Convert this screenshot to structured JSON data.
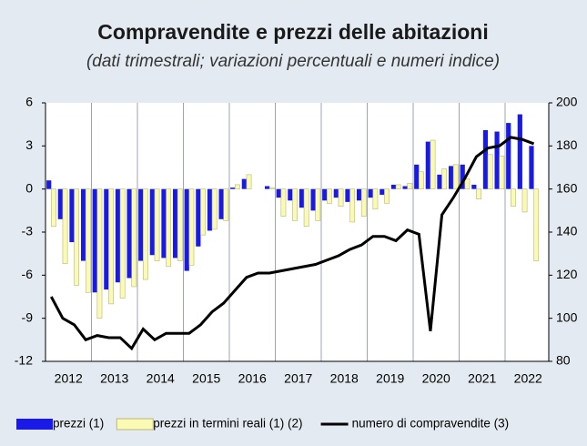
{
  "chart_data": {
    "type": "bar-line",
    "title": "Compravendite e prezzi delle abitazioni",
    "subtitle": "(dati trimestrali; variazioni percentuali e numeri indice)",
    "years": [
      "2012",
      "2013",
      "2014",
      "2015",
      "2016",
      "2017",
      "2018",
      "2019",
      "2020",
      "2021",
      "2022"
    ],
    "ylim": [
      -12,
      6
    ],
    "yticks": [
      -12,
      -9,
      -6,
      -3,
      0,
      3,
      6
    ],
    "y2lim": [
      80,
      200
    ],
    "y2ticks": [
      80,
      100,
      120,
      140,
      160,
      180,
      200
    ],
    "series": [
      {
        "name": "prezzi (1)",
        "kind": "bar",
        "color": "#1a1ae6",
        "values": [
          0.6,
          -2.1,
          -3.7,
          -5.0,
          -7.2,
          -7.0,
          -6.5,
          -6.2,
          -5.0,
          -4.6,
          -4.8,
          -4.8,
          -5.7,
          -4.0,
          -2.9,
          -2.1,
          0.1,
          0.7,
          0.0,
          0.2,
          -0.6,
          -0.8,
          -1.3,
          -1.5,
          -0.8,
          -0.6,
          -0.9,
          -0.8,
          -0.6,
          -0.4,
          0.3,
          0.2,
          1.7,
          3.3,
          1.0,
          1.6,
          1.7,
          0.3,
          4.1,
          4.0,
          4.6,
          5.2,
          3.0
        ]
      },
      {
        "name": "prezzi in termini reali (1) (2)",
        "kind": "bar",
        "color": "#fafab4",
        "values": [
          -2.6,
          -5.2,
          -6.7,
          -7.2,
          -9.0,
          -8.0,
          -7.6,
          -6.8,
          -6.3,
          -5.0,
          -5.4,
          -5.0,
          -5.3,
          -3.2,
          -2.8,
          -2.2,
          0.3,
          1.0,
          0.0,
          0.1,
          -1.9,
          -2.2,
          -2.6,
          -2.2,
          -1.0,
          -1.2,
          -2.3,
          -1.9,
          -1.4,
          -1.0,
          0.3,
          0.4,
          1.2,
          3.4,
          1.4,
          1.7,
          0.7,
          -0.7,
          2.4,
          2.3,
          -1.2,
          -1.6,
          -5.0
        ]
      },
      {
        "name": "numero di compravendite (3)",
        "kind": "line",
        "axis": "y2",
        "color": "#000000",
        "values": [
          110,
          100,
          97,
          90,
          92,
          91,
          91,
          86,
          95,
          90,
          93,
          93,
          93,
          97,
          103,
          107,
          113,
          119,
          121,
          121,
          122,
          123,
          124,
          125,
          127,
          129,
          132,
          134,
          138,
          138,
          136,
          141,
          139,
          94,
          148,
          156,
          165,
          175,
          179,
          180,
          184,
          183,
          181
        ]
      }
    ]
  }
}
